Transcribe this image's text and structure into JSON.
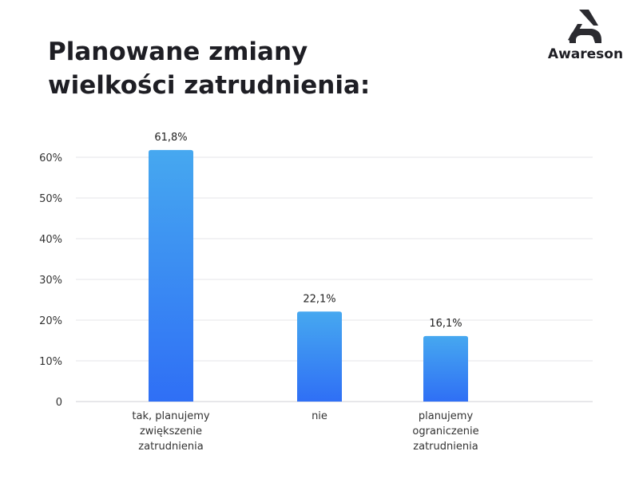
{
  "brand": {
    "name": "Awareson",
    "icon": "awareson-logo-icon"
  },
  "chart_data": {
    "type": "bar",
    "title": [
      "Planowane zmiany",
      "wielkości zatrudnienia:"
    ],
    "categories": [
      [
        "tak, planujemy",
        "zwiększenie",
        "zatrudnienia"
      ],
      [
        "nie"
      ],
      [
        "planujemy",
        "ograniczenie",
        "zatrudnienia"
      ]
    ],
    "values": [
      61.8,
      22.1,
      16.1
    ],
    "data_labels": [
      "61,8%",
      "22,1%",
      "16,1%"
    ],
    "ylim": [
      0,
      60
    ],
    "yticks": [
      0,
      10,
      20,
      30,
      40,
      50,
      60
    ],
    "ytick_labels": [
      "0",
      "10%",
      "20%",
      "30%",
      "40%",
      "50%",
      "60%"
    ],
    "grid": true,
    "bar_color_top": "#46a8f0",
    "bar_color_bottom": "#2f6ff5"
  }
}
